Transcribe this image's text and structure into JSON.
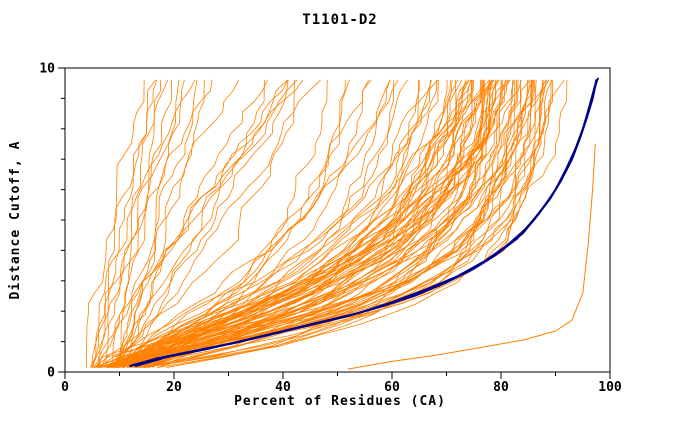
{
  "chart_data": {
    "type": "line",
    "title": "T1101-D2",
    "xlabel": "Percent of Residues (CA)",
    "ylabel": "Distance Cutoff, A",
    "xlim": [
      0,
      100
    ],
    "ylim": [
      0,
      10
    ],
    "xticks": [
      0,
      20,
      40,
      60,
      80,
      100
    ],
    "xticks_minor_step": 10,
    "yticks_labeled": [
      0,
      10
    ],
    "yticks_minor_step": 1,
    "grid": false,
    "legend": "none",
    "colors": {
      "ensemble": "#ff8000",
      "highlight": "#00008b",
      "secondary_highlight": "#000000",
      "frame": "#000000",
      "background": "#ffffff"
    },
    "series": [
      {
        "name": "model-ensemble",
        "color": "#ff8000",
        "type": "ensemble",
        "width": 0.8,
        "generator": {
          "seed": 42,
          "count": 110,
          "poor_fraction": 0.2,
          "mid_fraction": 0.15,
          "y_start": 0.15,
          "y_end": 9.62,
          "y_step": 0.35
        }
      },
      {
        "name": "low-outlier-model",
        "color": "#ff8000",
        "width": 1.0,
        "points": [
          [
            52,
            0.1
          ],
          [
            60,
            0.35
          ],
          [
            68,
            0.55
          ],
          [
            76,
            0.8
          ],
          [
            84,
            1.05
          ],
          [
            90,
            1.35
          ],
          [
            93,
            1.7
          ],
          [
            95,
            2.6
          ],
          [
            96,
            4.2
          ],
          [
            96.8,
            6.0
          ],
          [
            97.3,
            7.5
          ]
        ]
      },
      {
        "name": "best-model-black",
        "color": "#000000",
        "width": 1.4,
        "points": [
          [
            12,
            0.2
          ],
          [
            18,
            0.48
          ],
          [
            25,
            0.72
          ],
          [
            32,
            1.0
          ],
          [
            39,
            1.3
          ],
          [
            46,
            1.6
          ],
          [
            53,
            1.9
          ],
          [
            59,
            2.2
          ],
          [
            65,
            2.6
          ],
          [
            71,
            3.05
          ],
          [
            76,
            3.5
          ],
          [
            80,
            4.0
          ],
          [
            84,
            4.55
          ],
          [
            87,
            5.2
          ],
          [
            89.5,
            5.85
          ],
          [
            91.5,
            6.5
          ],
          [
            93.3,
            7.2
          ],
          [
            94.8,
            7.9
          ],
          [
            96,
            8.6
          ],
          [
            97,
            9.2
          ],
          [
            97.6,
            9.55
          ]
        ]
      },
      {
        "name": "highlight-model-navy-1",
        "color": "#00008b",
        "width": 2.2,
        "points": [
          [
            12,
            0.2
          ],
          [
            17,
            0.45
          ],
          [
            24,
            0.7
          ],
          [
            31,
            0.95
          ],
          [
            38,
            1.25
          ],
          [
            45,
            1.55
          ],
          [
            52,
            1.85
          ],
          [
            58,
            2.15
          ],
          [
            64,
            2.5
          ],
          [
            70,
            2.95
          ],
          [
            75,
            3.4
          ],
          [
            79,
            3.85
          ],
          [
            83,
            4.4
          ],
          [
            86,
            5.0
          ],
          [
            89,
            5.7
          ],
          [
            91,
            6.3
          ],
          [
            93,
            7.0
          ],
          [
            94.5,
            7.7
          ],
          [
            95.8,
            8.4
          ],
          [
            96.8,
            9.0
          ],
          [
            97.5,
            9.6
          ]
        ]
      },
      {
        "name": "highlight-model-navy-2",
        "color": "#00008b",
        "width": 1.8,
        "points": [
          [
            13,
            0.2
          ],
          [
            19,
            0.5
          ],
          [
            26,
            0.75
          ],
          [
            33,
            1.05
          ],
          [
            40,
            1.35
          ],
          [
            47,
            1.65
          ],
          [
            54,
            1.95
          ],
          [
            60,
            2.3
          ],
          [
            66,
            2.7
          ],
          [
            72,
            3.15
          ],
          [
            77,
            3.65
          ],
          [
            81,
            4.15
          ],
          [
            84.5,
            4.7
          ],
          [
            87.5,
            5.35
          ],
          [
            90,
            6.0
          ],
          [
            92,
            6.7
          ],
          [
            93.8,
            7.4
          ],
          [
            95.2,
            8.1
          ],
          [
            96.3,
            8.8
          ],
          [
            97.2,
            9.4
          ],
          [
            97.8,
            9.65
          ]
        ]
      }
    ]
  }
}
